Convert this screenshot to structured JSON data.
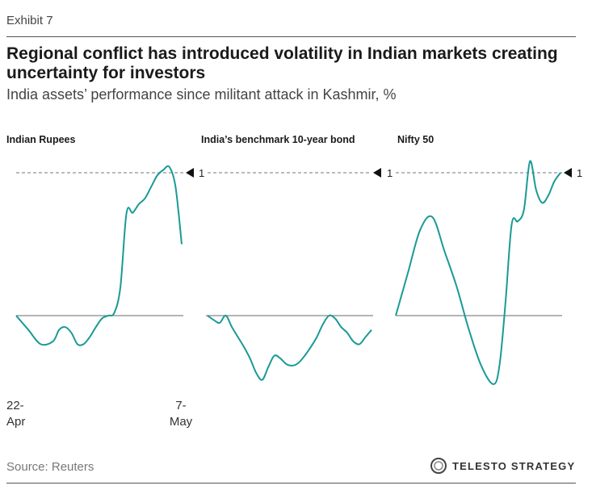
{
  "header": {
    "exhibit": "Exhibit 7",
    "title": "Regional conflict has introduced volatility in Indian markets creating uncertainty for investors",
    "subtitle": "India assets’ performance since militant attack in Kashmir, %"
  },
  "footer": {
    "source": "Source: Reuters",
    "brand": "TELESTO STRATEGY"
  },
  "x_axis": {
    "start_line1": "22-",
    "start_line2": "Apr",
    "end_line1": "7-",
    "end_line2": "May"
  },
  "colors": {
    "series": "#1a9a96",
    "zero_line": "#888888",
    "ref_line": "#777777"
  },
  "chart_data": [
    {
      "type": "line",
      "title": "Indian Rupees",
      "ref_line": {
        "value": 1,
        "label": "1",
        "style": "dashed",
        "marker": "left-pointing triangle"
      },
      "zero_line": true,
      "ylim": [
        -0.5,
        1.2
      ],
      "x": [
        0,
        2,
        4,
        6,
        7,
        8,
        9,
        10,
        11,
        12,
        13,
        14,
        15,
        16,
        17,
        18,
        19,
        20,
        21,
        22,
        23,
        24,
        25,
        26,
        27
      ],
      "values": [
        0,
        -0.1,
        -0.2,
        -0.18,
        -0.1,
        -0.08,
        -0.12,
        -0.2,
        -0.2,
        -0.15,
        -0.08,
        -0.02,
        0,
        0.02,
        0.2,
        0.72,
        0.72,
        0.78,
        0.82,
        0.9,
        0.98,
        1.02,
        1.04,
        0.9,
        0.5
      ]
    },
    {
      "type": "line",
      "title": "India’s benchmark 10-year bond",
      "ref_line": {
        "value": 1,
        "label": "1",
        "style": "dashed",
        "marker": "left-pointing triangle"
      },
      "zero_line": true,
      "ylim": [
        -0.5,
        1.2
      ],
      "x": [
        0,
        1,
        2,
        3,
        4,
        5,
        6,
        7,
        8,
        9,
        10,
        11,
        12,
        13,
        14,
        15,
        16,
        17,
        18,
        19,
        20,
        21,
        22,
        23,
        24,
        25,
        26,
        27
      ],
      "values": [
        0,
        -0.03,
        -0.05,
        0,
        -0.08,
        -0.15,
        -0.22,
        -0.3,
        -0.4,
        -0.45,
        -0.36,
        -0.28,
        -0.3,
        -0.34,
        -0.35,
        -0.33,
        -0.28,
        -0.22,
        -0.15,
        -0.06,
        0,
        -0.02,
        -0.08,
        -0.12,
        -0.18,
        -0.2,
        -0.15,
        -0.1
      ]
    },
    {
      "type": "line",
      "title": "Nifty 50",
      "ref_line": {
        "value": 1,
        "label": "1",
        "style": "dashed",
        "marker": "left-pointing triangle"
      },
      "zero_line": true,
      "ylim": [
        -0.5,
        1.2
      ],
      "x": [
        0,
        2,
        4,
        6,
        8,
        10,
        12,
        14,
        16,
        17,
        18,
        19,
        20,
        21,
        22,
        23,
        24,
        25,
        26,
        27
      ],
      "values": [
        0,
        0.3,
        0.6,
        0.69,
        0.45,
        0.2,
        -0.1,
        -0.35,
        -0.48,
        -0.35,
        0.1,
        0.64,
        0.66,
        0.74,
        1.08,
        0.88,
        0.79,
        0.84,
        0.94,
        1.0
      ]
    }
  ]
}
